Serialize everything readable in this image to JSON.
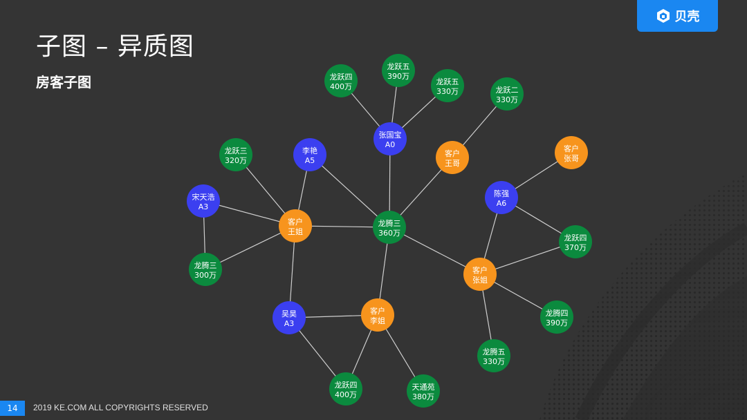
{
  "slide": {
    "title": "子图 – 异质图",
    "subtitle": "房客子图",
    "brand": "贝壳",
    "page_number": "14",
    "copyright": "2019 KE.COM ALL COPYRIGHTS RESERVED"
  },
  "colors": {
    "background": "#343434",
    "agent": "#3b3ff0",
    "customer": "#f7941d",
    "house": "#0b8a3e",
    "edge": "#cfcfcf",
    "brand": "#1a87f1"
  },
  "graph": {
    "nodes": [
      {
        "id": "h1",
        "type": "house",
        "line1": "龙跃四",
        "line2": "400万"
      },
      {
        "id": "h2",
        "type": "house",
        "line1": "龙跃五",
        "line2": "390万"
      },
      {
        "id": "h3",
        "type": "house",
        "line1": "龙跃五",
        "line2": "330万"
      },
      {
        "id": "h4",
        "type": "house",
        "line1": "龙跃二",
        "line2": "330万"
      },
      {
        "id": "a0",
        "type": "agent",
        "line1": "张国宝",
        "line2": "A0"
      },
      {
        "id": "h5",
        "type": "house",
        "line1": "龙跃三",
        "line2": "320万"
      },
      {
        "id": "a5",
        "type": "agent",
        "line1": "李艳",
        "line2": "A5"
      },
      {
        "id": "c1",
        "type": "customer",
        "line1": "客户",
        "line2": "王哥"
      },
      {
        "id": "c2",
        "type": "customer",
        "line1": "客户",
        "line2": "张哥"
      },
      {
        "id": "a3a",
        "type": "agent",
        "line1": "宋天浩",
        "line2": "A3"
      },
      {
        "id": "a6",
        "type": "agent",
        "line1": "陈强",
        "line2": "A6"
      },
      {
        "id": "c3",
        "type": "customer",
        "line1": "客户",
        "line2": "王姐"
      },
      {
        "id": "h6",
        "type": "house",
        "line1": "龙腾三",
        "line2": "360万"
      },
      {
        "id": "h7",
        "type": "house",
        "line1": "龙跃四",
        "line2": "370万"
      },
      {
        "id": "h8",
        "type": "house",
        "line1": "龙腾三",
        "line2": "300万"
      },
      {
        "id": "c4",
        "type": "customer",
        "line1": "客户",
        "line2": "张姐"
      },
      {
        "id": "a3b",
        "type": "agent",
        "line1": "吴昊",
        "line2": "A3"
      },
      {
        "id": "c5",
        "type": "customer",
        "line1": "客户",
        "line2": "李姐"
      },
      {
        "id": "h9",
        "type": "house",
        "line1": "龙腾四",
        "line2": "390万"
      },
      {
        "id": "h10",
        "type": "house",
        "line1": "龙腾五",
        "line2": "330万"
      },
      {
        "id": "h11",
        "type": "house",
        "line1": "龙跃四",
        "line2": "400万"
      },
      {
        "id": "h12",
        "type": "house",
        "line1": "天通苑",
        "line2": "380万"
      }
    ],
    "edges": [
      [
        "h1",
        "a0"
      ],
      [
        "h2",
        "a0"
      ],
      [
        "h3",
        "a0"
      ],
      [
        "a0",
        "h6"
      ],
      [
        "h4",
        "c1"
      ],
      [
        "c1",
        "h6"
      ],
      [
        "h5",
        "c3"
      ],
      [
        "a5",
        "c3"
      ],
      [
        "a3a",
        "c3"
      ],
      [
        "a3a",
        "h8"
      ],
      [
        "h8",
        "c3"
      ],
      [
        "c3",
        "h6"
      ],
      [
        "c3",
        "a3b"
      ],
      [
        "a5",
        "h6"
      ],
      [
        "c2",
        "a6"
      ],
      [
        "a6",
        "h7"
      ],
      [
        "a6",
        "c4"
      ],
      [
        "h7",
        "c4"
      ],
      [
        "h6",
        "c4"
      ],
      [
        "h6",
        "c5"
      ],
      [
        "c4",
        "h9"
      ],
      [
        "c4",
        "h10"
      ],
      [
        "a3b",
        "c5"
      ],
      [
        "a3b",
        "h11"
      ],
      [
        "c5",
        "h11"
      ],
      [
        "c5",
        "h12"
      ]
    ]
  }
}
